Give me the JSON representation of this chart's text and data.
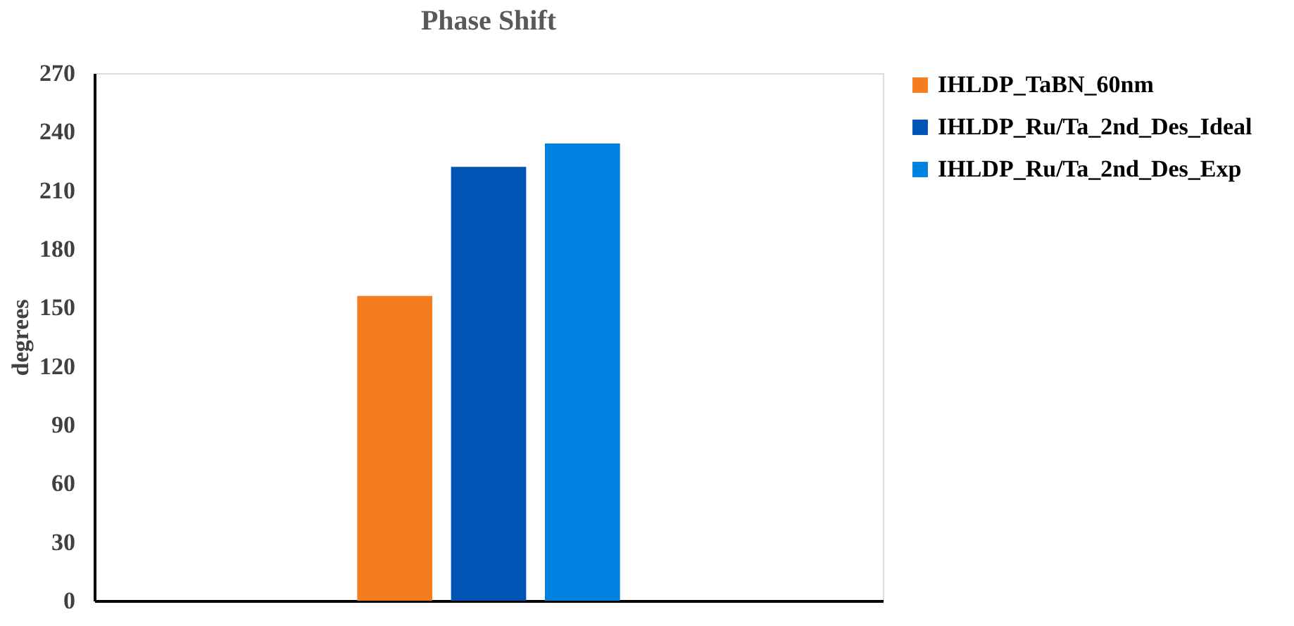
{
  "chart_data": {
    "type": "bar",
    "title": "Phase Shift",
    "ylabel": "degrees",
    "categories": [
      null
    ],
    "series": [
      {
        "name": "IHLDP_TaBN_60nm",
        "color": "#f47d20",
        "values": [
          156
        ]
      },
      {
        "name": "IHLDP_Ru/Ta_2nd_Des_Ideal",
        "color": "#0054b4",
        "values": [
          222
        ]
      },
      {
        "name": "IHLDP_Ru/Ta_2nd_Des_Exp",
        "color": "#0082e0",
        "values": [
          234
        ]
      }
    ],
    "ylim": [
      0,
      270
    ],
    "yticks": [
      0,
      30,
      60,
      90,
      120,
      150,
      180,
      210,
      240,
      270
    ],
    "grid": false,
    "legend": "right"
  }
}
